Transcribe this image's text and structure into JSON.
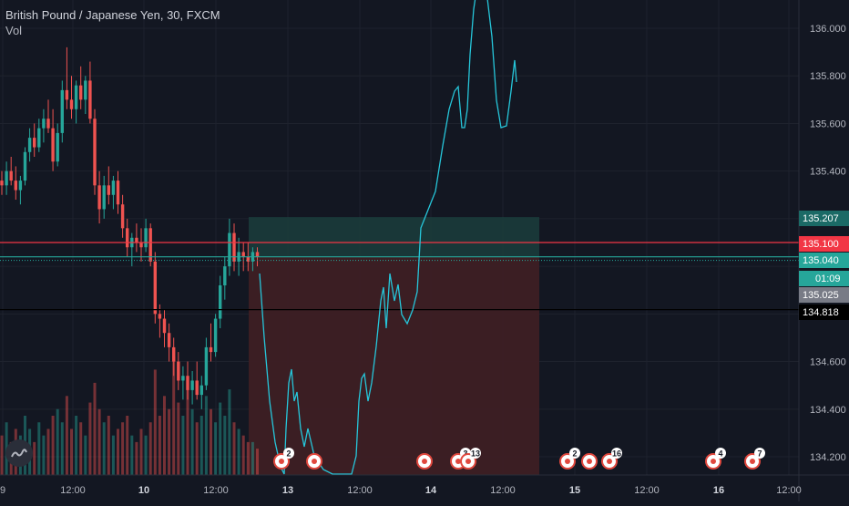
{
  "header": {
    "symbol_line": "British Pound / Japanese Yen, 30, FXCM",
    "indicator": "Vol"
  },
  "colors": {
    "background": "#131722",
    "up": "#26a69a",
    "down": "#ef5350",
    "grid": "#1e222d",
    "projection": "#26c6da",
    "target_zone": "#1b3b3b",
    "stop_zone": "#3d1f24",
    "red_line": "#f23645",
    "teal_line": "#26a69a",
    "black_line": "#000000"
  },
  "chart_data": {
    "type": "candlestick",
    "title": "British Pound / Japanese Yen, 30, FXCM",
    "y_axis": {
      "ticks": [
        136.0,
        135.8,
        135.6,
        135.4,
        135.2,
        135.0,
        134.8,
        134.6,
        134.4,
        134.2
      ],
      "tick_labels": [
        "136.000",
        "135.800",
        "135.600",
        "135.400",
        "",
        "",
        "",
        "134.600",
        "134.400",
        "134.200"
      ],
      "range": [
        134.12,
        136.12
      ]
    },
    "x_axis": {
      "tick_labels": [
        "9",
        "12:00",
        "10",
        "12:00",
        "13",
        "12:00",
        "14",
        "12:00",
        "15",
        "12:00",
        "16",
        "12:00"
      ],
      "bold_labels": [
        "10",
        "13",
        "14",
        "15",
        "16"
      ]
    },
    "price_labels": [
      {
        "value": "135.207",
        "kind": "target"
      },
      {
        "value": "135.100",
        "kind": "red-line"
      },
      {
        "value": "135.040",
        "kind": "last"
      },
      {
        "value": "01:09",
        "kind": "countdown"
      },
      {
        "value": "135.025",
        "kind": "gray"
      },
      {
        "value": "134.818",
        "kind": "black-line"
      }
    ],
    "horizontal_lines": [
      {
        "price": 135.1,
        "color": "#f23645"
      },
      {
        "price": 135.04,
        "color": "#26a69a"
      },
      {
        "price": 134.818,
        "color": "#000000"
      }
    ],
    "position_zone": {
      "entry": 135.04,
      "target": 135.207,
      "stop": 134.12,
      "x_start_label": "13",
      "note": "long position tool: green target zone above entry, red stop zone below"
    },
    "candles": [
      [
        135.36,
        135.4,
        135.3,
        135.34
      ],
      [
        135.34,
        135.44,
        135.3,
        135.4
      ],
      [
        135.4,
        135.46,
        135.34,
        135.36
      ],
      [
        135.36,
        135.42,
        135.28,
        135.32
      ],
      [
        135.32,
        135.38,
        135.26,
        135.36
      ],
      [
        135.36,
        135.5,
        135.34,
        135.48
      ],
      [
        135.48,
        135.58,
        135.44,
        135.54
      ],
      [
        135.54,
        135.6,
        135.46,
        135.5
      ],
      [
        135.5,
        135.62,
        135.48,
        135.58
      ],
      [
        135.58,
        135.66,
        135.52,
        135.62
      ],
      [
        135.62,
        135.7,
        135.56,
        135.58
      ],
      [
        135.58,
        135.66,
        135.4,
        135.44
      ],
      [
        135.44,
        135.6,
        135.42,
        135.56
      ],
      [
        135.56,
        135.78,
        135.52,
        135.74
      ],
      [
        135.74,
        135.92,
        135.66,
        135.7
      ],
      [
        135.7,
        135.8,
        135.62,
        135.66
      ],
      [
        135.66,
        135.78,
        135.6,
        135.76
      ],
      [
        135.76,
        135.84,
        135.66,
        135.7
      ],
      [
        135.7,
        135.8,
        135.64,
        135.78
      ],
      [
        135.78,
        135.86,
        135.6,
        135.62
      ],
      [
        135.62,
        135.66,
        135.3,
        135.34
      ],
      [
        135.34,
        135.4,
        135.18,
        135.24
      ],
      [
        135.24,
        135.38,
        135.2,
        135.34
      ],
      [
        135.34,
        135.42,
        135.26,
        135.3
      ],
      [
        135.3,
        135.38,
        135.24,
        135.36
      ],
      [
        135.36,
        135.4,
        135.22,
        135.26
      ],
      [
        135.26,
        135.3,
        135.12,
        135.16
      ],
      [
        135.16,
        135.2,
        135.04,
        135.08
      ],
      [
        135.08,
        135.14,
        135.0,
        135.12
      ],
      [
        135.12,
        135.18,
        135.06,
        135.1
      ],
      [
        135.1,
        135.16,
        135.02,
        135.08
      ],
      [
        135.08,
        135.2,
        135.06,
        135.16
      ],
      [
        135.16,
        135.18,
        135.0,
        135.02
      ],
      [
        135.02,
        135.06,
        134.76,
        134.8
      ],
      [
        134.8,
        134.84,
        134.7,
        134.78
      ],
      [
        134.78,
        134.82,
        134.66,
        134.72
      ],
      [
        134.72,
        134.76,
        134.6,
        134.66
      ],
      [
        134.66,
        134.7,
        134.54,
        134.6
      ],
      [
        134.6,
        134.64,
        134.48,
        134.52
      ],
      [
        134.52,
        134.58,
        134.44,
        134.54
      ],
      [
        134.54,
        134.6,
        134.44,
        134.48
      ],
      [
        134.48,
        134.56,
        134.42,
        134.52
      ],
      [
        134.52,
        134.6,
        134.44,
        134.46
      ],
      [
        134.46,
        134.54,
        134.4,
        134.5
      ],
      [
        134.5,
        134.7,
        134.48,
        134.66
      ],
      [
        134.66,
        134.76,
        134.6,
        134.64
      ],
      [
        134.64,
        134.8,
        134.62,
        134.78
      ],
      [
        134.78,
        134.96,
        134.74,
        134.92
      ],
      [
        134.92,
        135.04,
        134.86,
        135.0
      ],
      [
        135.0,
        135.2,
        134.96,
        135.14
      ],
      [
        135.14,
        135.18,
        134.98,
        135.02
      ],
      [
        135.02,
        135.12,
        134.96,
        135.06
      ],
      [
        135.06,
        135.1,
        134.98,
        135.04
      ],
      [
        135.04,
        135.1,
        134.98,
        135.02
      ],
      [
        135.02,
        135.08,
        134.98,
        135.06
      ],
      [
        135.06,
        135.08,
        135.0,
        135.04
      ]
    ],
    "volumes": [
      6,
      8,
      5,
      7,
      6,
      9,
      7,
      5,
      8,
      6,
      7,
      9,
      10,
      8,
      12,
      7,
      9,
      8,
      6,
      11,
      14,
      10,
      8,
      9,
      6,
      7,
      8,
      9,
      6,
      5,
      7,
      6,
      8,
      16,
      9,
      12,
      10,
      18,
      11,
      9,
      13,
      10,
      8,
      9,
      12,
      10,
      8,
      11,
      9,
      13,
      8,
      7,
      6,
      5,
      5,
      4
    ],
    "projection_path": [
      [
        285,
        300
      ],
      [
        290,
        370
      ],
      [
        296,
        440
      ],
      [
        302,
        485
      ],
      [
        308,
        512
      ],
      [
        312,
        520
      ],
      [
        314,
        470
      ],
      [
        317,
        420
      ],
      [
        320,
        405
      ],
      [
        323,
        440
      ],
      [
        326,
        430
      ],
      [
        330,
        470
      ],
      [
        334,
        490
      ],
      [
        338,
        470
      ],
      [
        345,
        500
      ],
      [
        355,
        515
      ],
      [
        365,
        520
      ],
      [
        375,
        520
      ],
      [
        386,
        520
      ],
      [
        391,
        500
      ],
      [
        394,
        440
      ],
      [
        397,
        415
      ],
      [
        400,
        410
      ],
      [
        404,
        440
      ],
      [
        408,
        420
      ],
      [
        413,
        380
      ],
      [
        418,
        330
      ],
      [
        421,
        315
      ],
      [
        424,
        360
      ],
      [
        428,
        300
      ],
      [
        433,
        330
      ],
      [
        437,
        312
      ],
      [
        441,
        345
      ],
      [
        447,
        355
      ],
      [
        453,
        340
      ],
      [
        458,
        320
      ],
      [
        462,
        250
      ],
      [
        470,
        230
      ],
      [
        478,
        210
      ],
      [
        486,
        160
      ],
      [
        493,
        120
      ],
      [
        499,
        100
      ],
      [
        503,
        95
      ],
      [
        507,
        140
      ],
      [
        510,
        140
      ],
      [
        513,
        120
      ],
      [
        516,
        60
      ],
      [
        520,
        10
      ],
      [
        526,
        -30
      ],
      [
        534,
        -10
      ],
      [
        540,
        40
      ],
      [
        545,
        110
      ],
      [
        550,
        140
      ],
      [
        556,
        138
      ],
      [
        561,
        100
      ],
      [
        565,
        66
      ],
      [
        567,
        90
      ]
    ],
    "events": [
      {
        "x_label": "13",
        "badge": "2"
      },
      {
        "x_label": "13",
        "badge": ""
      },
      {
        "x_label": "14",
        "badge": ""
      },
      {
        "x_label": "14",
        "badge": "3"
      },
      {
        "x_label": "14",
        "badge": "13"
      },
      {
        "x_label": "15",
        "badge": "2"
      },
      {
        "x_label": "15",
        "badge": ""
      },
      {
        "x_label": "15",
        "badge": "16"
      },
      {
        "x_label": "16",
        "badge": "4"
      },
      {
        "x_label": "16",
        "badge": "7"
      }
    ]
  }
}
